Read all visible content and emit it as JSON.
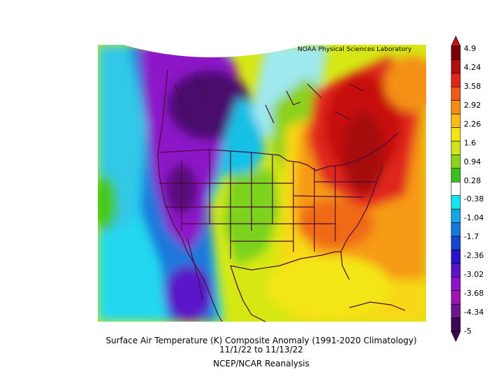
{
  "credit": "NOAA Physical Sciences Laboratory",
  "title": {
    "line1": "Surface Air Temperature (K) Composite Anomaly (1991-2020 Climatology)",
    "line2": "11/1/22  to 11/13/22",
    "line3": "NCEP/NCAR Reanalysis"
  },
  "colorbar": {
    "labels": [
      "4.9",
      "4.24",
      "3.58",
      "2.92",
      "2.26",
      "1.6",
      "0.94",
      "0.28",
      "-0.38",
      "-1.04",
      "-1.7",
      "-2.36",
      "-3.02",
      "-3.68",
      "-4.34",
      "-5"
    ],
    "colors": [
      "#7a0000",
      "#b40f0f",
      "#e0261b",
      "#f05a14",
      "#f78c14",
      "#fbba14",
      "#f8e614",
      "#cfe61e",
      "#8fd21e",
      "#3cbe1e",
      "#ffffff",
      "#14e6f0",
      "#14a6e6",
      "#1478dc",
      "#1446d2",
      "#2814c8",
      "#5a14c8",
      "#8c14c8",
      "#a014b4",
      "#6e148c",
      "#3c0a50"
    ],
    "top_color": "#cc1010",
    "bottom_color": "#3c0a50"
  }
}
